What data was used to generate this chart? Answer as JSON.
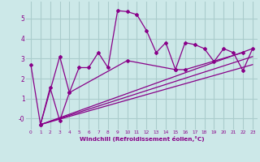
{
  "background_color": "#cce8e8",
  "grid_color": "#aacccc",
  "line_color": "#880088",
  "marker_color": "#880088",
  "xlabel": "Windchill (Refroidissement éolien,°C)",
  "xlabel_color": "#880088",
  "ylabel_color": "#880088",
  "xlim": [
    -0.5,
    23.5
  ],
  "ylim": [
    -0.55,
    5.85
  ],
  "yticks": [
    0,
    1,
    2,
    3,
    4,
    5
  ],
  "ytick_labels": [
    "-0",
    "1",
    "2",
    "3",
    "4",
    "5"
  ],
  "xticks": [
    0,
    1,
    2,
    3,
    4,
    5,
    6,
    7,
    8,
    9,
    10,
    11,
    12,
    13,
    14,
    15,
    16,
    17,
    18,
    19,
    20,
    21,
    22,
    23
  ],
  "series1_x": [
    0,
    1,
    3,
    4,
    5,
    6,
    7,
    8,
    9,
    10,
    11,
    12,
    13,
    14,
    15,
    16,
    17,
    18,
    19,
    20,
    21,
    22,
    23
  ],
  "series1_y": [
    2.7,
    -0.3,
    3.1,
    1.3,
    2.55,
    2.55,
    3.3,
    2.55,
    5.4,
    5.35,
    5.2,
    4.4,
    3.3,
    3.8,
    2.45,
    3.8,
    3.7,
    3.5,
    2.85,
    3.5,
    3.3,
    2.4,
    3.5
  ],
  "series2_x": [
    1,
    2,
    3,
    4,
    10,
    15,
    16,
    22
  ],
  "series2_y": [
    -0.3,
    1.55,
    -0.1,
    1.3,
    2.9,
    2.45,
    2.45,
    3.3
  ],
  "line1_x": [
    1,
    23
  ],
  "line1_y": [
    -0.3,
    3.5
  ],
  "line2_x": [
    1,
    23
  ],
  "line2_y": [
    -0.3,
    3.1
  ],
  "line3_x": [
    1,
    23
  ],
  "line3_y": [
    -0.3,
    2.7
  ]
}
